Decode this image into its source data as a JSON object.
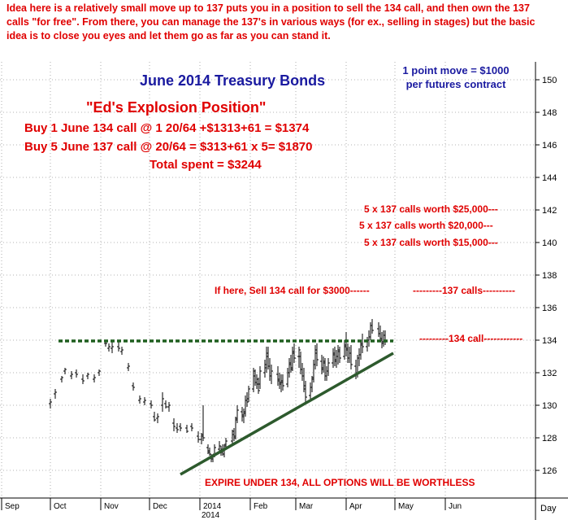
{
  "intro_text": "Idea here is a relatively small move up to 137 puts you in a position to sell the 134 call, and then own the 137 calls \"for free\". From there, you can manage the 137's in various ways (for ex., selling in stages) but the basic idea is to close you eyes and let them go as far as you can stand it.",
  "scale_note": "1 point move = $1000\nper futures contract",
  "position_name": "\"Ed's Explosion Position\"",
  "trades": {
    "line1": "Buy 1 June 134 call @ 1 20/64 +$1313+61 = $1374",
    "line2": "Buy 5 June 137 call @ 20/64 = $313+61 x 5= $1870",
    "total": "Total spent = $3244"
  },
  "colors": {
    "text_red": "#e00000",
    "title_blue": "#1a1aa0",
    "support_line": "#1e5e1e",
    "resistance_line": "#2d5a2d",
    "bars": "#000000",
    "grid": "#9a9a9a"
  },
  "chart_data": {
    "type": "ohlc",
    "title": "June 2014 Treasury Bonds",
    "x": {
      "tick_labels": [
        "Sep",
        "Oct",
        "Nov",
        "Dec",
        "2014",
        "Feb",
        "Mar",
        "Apr",
        "May",
        "Jun"
      ],
      "corner_label": "Day",
      "year_label": "2014",
      "range_months": [
        "2013-09",
        "2014-06"
      ]
    },
    "y": {
      "tick_labels": [
        "126",
        "128",
        "130",
        "132",
        "134",
        "136",
        "138",
        "140",
        "142",
        "144",
        "146",
        "148",
        "150"
      ],
      "range": [
        125,
        151
      ],
      "position": "right"
    },
    "grid": "dashed vertical and horizontal",
    "bars": [
      {
        "d": "2013-10-01",
        "o": 130.1,
        "h": 130.4,
        "l": 129.8,
        "c": 130.2
      },
      {
        "d": "2013-10-04",
        "o": 130.7,
        "h": 131.0,
        "l": 130.4,
        "c": 130.8
      },
      {
        "d": "2013-10-08",
        "o": 131.6,
        "h": 131.8,
        "l": 131.4,
        "c": 131.7
      },
      {
        "d": "2013-10-10",
        "o": 132.1,
        "h": 132.3,
        "l": 131.9,
        "c": 132.2
      },
      {
        "d": "2013-10-14",
        "o": 131.8,
        "h": 132.1,
        "l": 131.6,
        "c": 131.9
      },
      {
        "d": "2013-10-17",
        "o": 132.0,
        "h": 132.2,
        "l": 131.7,
        "c": 131.9
      },
      {
        "d": "2013-10-21",
        "o": 131.6,
        "h": 131.9,
        "l": 131.3,
        "c": 131.5
      },
      {
        "d": "2013-10-24",
        "o": 131.8,
        "h": 132.0,
        "l": 131.6,
        "c": 131.9
      },
      {
        "d": "2013-10-28",
        "o": 131.6,
        "h": 131.9,
        "l": 131.4,
        "c": 131.7
      },
      {
        "d": "2013-10-31",
        "o": 132.0,
        "h": 132.2,
        "l": 131.8,
        "c": 132.1
      },
      {
        "d": "2013-11-04",
        "o": 133.8,
        "h": 134.0,
        "l": 133.6,
        "c": 133.8
      },
      {
        "d": "2013-11-06",
        "o": 133.5,
        "h": 133.8,
        "l": 133.3,
        "c": 133.6
      },
      {
        "d": "2013-11-08",
        "o": 133.5,
        "h": 133.9,
        "l": 133.2,
        "c": 133.6
      },
      {
        "d": "2013-11-12",
        "o": 133.6,
        "h": 133.9,
        "l": 133.3,
        "c": 133.5
      },
      {
        "d": "2013-11-14",
        "o": 133.3,
        "h": 133.6,
        "l": 133.1,
        "c": 133.4
      },
      {
        "d": "2013-11-18",
        "o": 132.3,
        "h": 132.6,
        "l": 132.1,
        "c": 132.4
      },
      {
        "d": "2013-11-21",
        "o": 131.2,
        "h": 131.4,
        "l": 130.9,
        "c": 131.1
      },
      {
        "d": "2013-11-25",
        "o": 130.3,
        "h": 130.6,
        "l": 130.1,
        "c": 130.4
      },
      {
        "d": "2013-11-28",
        "o": 130.2,
        "h": 130.5,
        "l": 130.0,
        "c": 130.3
      },
      {
        "d": "2013-12-02",
        "o": 130.1,
        "h": 130.3,
        "l": 129.8,
        "c": 130.0
      },
      {
        "d": "2013-12-04",
        "o": 129.3,
        "h": 129.6,
        "l": 129.0,
        "c": 129.1
      },
      {
        "d": "2013-12-06",
        "o": 129.2,
        "h": 129.5,
        "l": 128.9,
        "c": 129.3
      },
      {
        "d": "2013-12-09",
        "o": 130.0,
        "h": 130.8,
        "l": 129.6,
        "c": 130.4
      },
      {
        "d": "2013-12-11",
        "o": 130.1,
        "h": 130.3,
        "l": 129.8,
        "c": 129.9
      },
      {
        "d": "2013-12-13",
        "o": 129.9,
        "h": 130.2,
        "l": 129.6,
        "c": 130.0
      },
      {
        "d": "2013-12-16",
        "o": 128.9,
        "h": 129.2,
        "l": 128.4,
        "c": 128.7
      },
      {
        "d": "2013-12-18",
        "o": 128.6,
        "h": 128.9,
        "l": 128.3,
        "c": 128.5
      },
      {
        "d": "2013-12-20",
        "o": 128.7,
        "h": 128.9,
        "l": 128.4,
        "c": 128.6
      },
      {
        "d": "2013-12-24",
        "o": 128.6,
        "h": 128.8,
        "l": 128.3,
        "c": 128.4
      },
      {
        "d": "2013-12-27",
        "o": 128.7,
        "h": 128.9,
        "l": 128.4,
        "c": 128.6
      },
      {
        "d": "2013-12-31",
        "o": 128.1,
        "h": 128.4,
        "l": 127.7,
        "c": 127.9
      },
      {
        "d": "2014-01-02",
        "o": 127.9,
        "h": 128.3,
        "l": 127.6,
        "c": 128.1
      },
      {
        "d": "2014-01-03",
        "o": 128.2,
        "h": 130.0,
        "l": 127.8,
        "c": 128.0
      },
      {
        "d": "2014-01-06",
        "o": 127.4,
        "h": 127.6,
        "l": 127.0,
        "c": 127.2
      },
      {
        "d": "2014-01-07",
        "o": 127.1,
        "h": 127.4,
        "l": 126.9,
        "c": 127.0
      },
      {
        "d": "2014-01-08",
        "o": 126.8,
        "h": 127.0,
        "l": 126.5,
        "c": 126.7
      },
      {
        "d": "2014-01-09",
        "o": 126.7,
        "h": 127.0,
        "l": 126.5,
        "c": 126.9
      },
      {
        "d": "2014-01-10",
        "o": 127.0,
        "h": 127.6,
        "l": 126.8,
        "c": 127.4
      },
      {
        "d": "2014-01-13",
        "o": 127.3,
        "h": 127.8,
        "l": 127.1,
        "c": 127.5
      },
      {
        "d": "2014-01-14",
        "o": 127.2,
        "h": 127.5,
        "l": 126.9,
        "c": 127.1
      },
      {
        "d": "2014-01-15",
        "o": 127.3,
        "h": 127.6,
        "l": 126.9,
        "c": 127.0
      },
      {
        "d": "2014-01-16",
        "o": 127.0,
        "h": 127.6,
        "l": 126.8,
        "c": 127.5
      },
      {
        "d": "2014-01-17",
        "o": 127.6,
        "h": 128.0,
        "l": 127.3,
        "c": 127.8
      },
      {
        "d": "2014-01-21",
        "o": 127.8,
        "h": 128.5,
        "l": 127.5,
        "c": 128.4
      },
      {
        "d": "2014-01-22",
        "o": 128.2,
        "h": 128.6,
        "l": 127.8,
        "c": 128.0
      },
      {
        "d": "2014-01-23",
        "o": 128.1,
        "h": 129.3,
        "l": 127.9,
        "c": 129.1
      },
      {
        "d": "2014-01-24",
        "o": 129.2,
        "h": 130.0,
        "l": 128.9,
        "c": 129.7
      },
      {
        "d": "2014-01-27",
        "o": 129.6,
        "h": 129.9,
        "l": 129.0,
        "c": 129.3
      },
      {
        "d": "2014-01-28",
        "o": 129.4,
        "h": 129.8,
        "l": 128.9,
        "c": 129.5
      },
      {
        "d": "2014-01-29",
        "o": 129.6,
        "h": 130.6,
        "l": 129.3,
        "c": 130.3
      },
      {
        "d": "2014-01-30",
        "o": 130.3,
        "h": 130.8,
        "l": 129.9,
        "c": 130.2
      },
      {
        "d": "2014-01-31",
        "o": 130.4,
        "h": 131.2,
        "l": 130.2,
        "c": 131.0
      },
      {
        "d": "2014-02-03",
        "o": 131.0,
        "h": 132.3,
        "l": 130.8,
        "c": 132.1
      },
      {
        "d": "2014-02-04",
        "o": 131.8,
        "h": 132.2,
        "l": 131.2,
        "c": 131.4
      },
      {
        "d": "2014-02-05",
        "o": 131.4,
        "h": 131.9,
        "l": 131.0,
        "c": 131.6
      },
      {
        "d": "2014-02-06",
        "o": 131.3,
        "h": 131.7,
        "l": 130.7,
        "c": 130.9
      },
      {
        "d": "2014-02-07",
        "o": 131.3,
        "h": 132.4,
        "l": 131.0,
        "c": 132.1
      },
      {
        "d": "2014-02-10",
        "o": 132.0,
        "h": 132.8,
        "l": 131.7,
        "c": 132.5
      },
      {
        "d": "2014-02-11",
        "o": 132.3,
        "h": 133.6,
        "l": 132.0,
        "c": 133.2
      },
      {
        "d": "2014-02-12",
        "o": 133.0,
        "h": 133.6,
        "l": 132.2,
        "c": 132.4
      },
      {
        "d": "2014-02-13",
        "o": 132.4,
        "h": 132.9,
        "l": 131.5,
        "c": 131.8
      },
      {
        "d": "2014-02-14",
        "o": 131.8,
        "h": 132.5,
        "l": 131.3,
        "c": 132.1
      },
      {
        "d": "2014-02-18",
        "o": 131.9,
        "h": 132.4,
        "l": 131.2,
        "c": 131.5
      },
      {
        "d": "2014-02-19",
        "o": 131.6,
        "h": 132.0,
        "l": 131.0,
        "c": 131.3
      },
      {
        "d": "2014-02-20",
        "o": 131.4,
        "h": 131.9,
        "l": 130.8,
        "c": 131.5
      },
      {
        "d": "2014-02-21",
        "o": 131.4,
        "h": 131.9,
        "l": 130.9,
        "c": 131.2
      },
      {
        "d": "2014-02-24",
        "o": 131.3,
        "h": 132.3,
        "l": 131.1,
        "c": 132.0
      },
      {
        "d": "2014-02-25",
        "o": 132.0,
        "h": 132.9,
        "l": 131.7,
        "c": 132.6
      },
      {
        "d": "2014-02-26",
        "o": 132.5,
        "h": 133.1,
        "l": 132.0,
        "c": 132.2
      },
      {
        "d": "2014-02-27",
        "o": 132.3,
        "h": 133.6,
        "l": 132.1,
        "c": 133.3
      },
      {
        "d": "2014-02-28",
        "o": 133.2,
        "h": 133.8,
        "l": 132.6,
        "c": 132.9
      },
      {
        "d": "2014-03-03",
        "o": 133.0,
        "h": 133.6,
        "l": 132.3,
        "c": 133.4
      },
      {
        "d": "2014-03-04",
        "o": 133.0,
        "h": 133.3,
        "l": 131.9,
        "c": 132.2
      },
      {
        "d": "2014-03-05",
        "o": 132.2,
        "h": 132.6,
        "l": 131.5,
        "c": 131.8
      },
      {
        "d": "2014-03-06",
        "o": 131.8,
        "h": 132.3,
        "l": 130.8,
        "c": 131.2
      },
      {
        "d": "2014-03-07",
        "o": 131.0,
        "h": 131.5,
        "l": 130.2,
        "c": 130.5
      },
      {
        "d": "2014-03-10",
        "o": 130.6,
        "h": 131.4,
        "l": 130.4,
        "c": 131.1
      },
      {
        "d": "2014-03-11",
        "o": 131.1,
        "h": 131.8,
        "l": 130.8,
        "c": 131.6
      },
      {
        "d": "2014-03-12",
        "o": 131.7,
        "h": 132.8,
        "l": 131.4,
        "c": 132.5
      },
      {
        "d": "2014-03-13",
        "o": 132.5,
        "h": 133.7,
        "l": 132.2,
        "c": 133.4
      },
      {
        "d": "2014-03-14",
        "o": 133.2,
        "h": 133.8,
        "l": 132.4,
        "c": 132.8
      },
      {
        "d": "2014-03-17",
        "o": 132.7,
        "h": 133.1,
        "l": 131.9,
        "c": 132.2
      },
      {
        "d": "2014-03-18",
        "o": 132.3,
        "h": 133.0,
        "l": 132.0,
        "c": 132.7
      },
      {
        "d": "2014-03-19",
        "o": 132.6,
        "h": 132.9,
        "l": 131.5,
        "c": 131.8
      },
      {
        "d": "2014-03-20",
        "o": 131.8,
        "h": 132.4,
        "l": 131.5,
        "c": 132.1
      },
      {
        "d": "2014-03-21",
        "o": 132.1,
        "h": 132.9,
        "l": 131.8,
        "c": 132.6
      },
      {
        "d": "2014-03-24",
        "o": 132.6,
        "h": 133.5,
        "l": 132.3,
        "c": 133.2
      },
      {
        "d": "2014-03-25",
        "o": 133.1,
        "h": 133.6,
        "l": 132.4,
        "c": 132.7
      },
      {
        "d": "2014-03-26",
        "o": 132.8,
        "h": 133.4,
        "l": 132.3,
        "c": 133.0
      },
      {
        "d": "2014-03-27",
        "o": 133.0,
        "h": 133.7,
        "l": 132.5,
        "c": 133.4
      },
      {
        "d": "2014-03-28",
        "o": 133.3,
        "h": 133.6,
        "l": 132.6,
        "c": 132.9
      },
      {
        "d": "2014-03-31",
        "o": 133.0,
        "h": 134.0,
        "l": 132.8,
        "c": 133.7
      },
      {
        "d": "2014-04-01",
        "o": 133.6,
        "h": 134.5,
        "l": 133.0,
        "c": 133.5
      },
      {
        "d": "2014-04-02",
        "o": 133.4,
        "h": 133.8,
        "l": 132.6,
        "c": 132.9
      },
      {
        "d": "2014-04-03",
        "o": 132.9,
        "h": 133.6,
        "l": 132.6,
        "c": 133.2
      },
      {
        "d": "2014-04-04",
        "o": 133.2,
        "h": 133.7,
        "l": 132.2,
        "c": 132.5
      },
      {
        "d": "2014-04-07",
        "o": 132.4,
        "h": 132.8,
        "l": 131.6,
        "c": 132.0
      },
      {
        "d": "2014-04-08",
        "o": 131.9,
        "h": 133.1,
        "l": 131.7,
        "c": 132.9
      },
      {
        "d": "2014-04-09",
        "o": 132.9,
        "h": 133.5,
        "l": 132.4,
        "c": 133.1
      },
      {
        "d": "2014-04-10",
        "o": 133.1,
        "h": 134.0,
        "l": 132.8,
        "c": 133.8
      },
      {
        "d": "2014-04-11",
        "o": 133.7,
        "h": 134.4,
        "l": 133.2,
        "c": 133.6
      },
      {
        "d": "2014-04-14",
        "o": 133.6,
        "h": 134.2,
        "l": 133.3,
        "c": 134.0
      },
      {
        "d": "2014-04-15",
        "o": 134.0,
        "h": 134.6,
        "l": 133.6,
        "c": 134.2
      },
      {
        "d": "2014-04-16",
        "o": 134.2,
        "h": 135.1,
        "l": 134.0,
        "c": 134.9
      },
      {
        "d": "2014-04-17",
        "o": 134.9,
        "h": 135.3,
        "l": 134.4,
        "c": 134.6
      },
      {
        "d": "2014-04-21",
        "o": 134.7,
        "h": 135.1,
        "l": 134.2,
        "c": 134.4
      },
      {
        "d": "2014-04-22",
        "o": 134.4,
        "h": 134.9,
        "l": 133.9,
        "c": 134.1
      },
      {
        "d": "2014-04-23",
        "o": 134.0,
        "h": 134.5,
        "l": 133.5,
        "c": 133.8
      },
      {
        "d": "2014-04-24",
        "o": 133.9,
        "h": 134.6,
        "l": 133.6,
        "c": 134.3
      },
      {
        "d": "2014-04-25",
        "o": 134.3,
        "h": 134.6,
        "l": 133.7,
        "c": 133.9
      }
    ],
    "lines": [
      {
        "name": "134 resistance",
        "style": "dashed",
        "color": "#1e5e1e",
        "from": [
          "2013-10-06",
          133.95
        ],
        "to": [
          "2014-04-30",
          133.95
        ]
      },
      {
        "name": "rising trendline",
        "style": "solid",
        "color": "#2d5a2d",
        "from": [
          "2013-12-20",
          125.75
        ],
        "to": [
          "2014-04-30",
          133.2
        ]
      }
    ],
    "annotations": [
      "5 x 137 calls worth $25,000---",
      "5 x 137 calls worth $20,000---",
      "5 x 137 calls worth $15,000---",
      "If here, Sell 134 call for $3000------",
      "---------137 calls----------",
      "---------134 call------------",
      "EXPIRE UNDER 134, ALL OPTIONS WILL BE WORTHLESS"
    ]
  }
}
